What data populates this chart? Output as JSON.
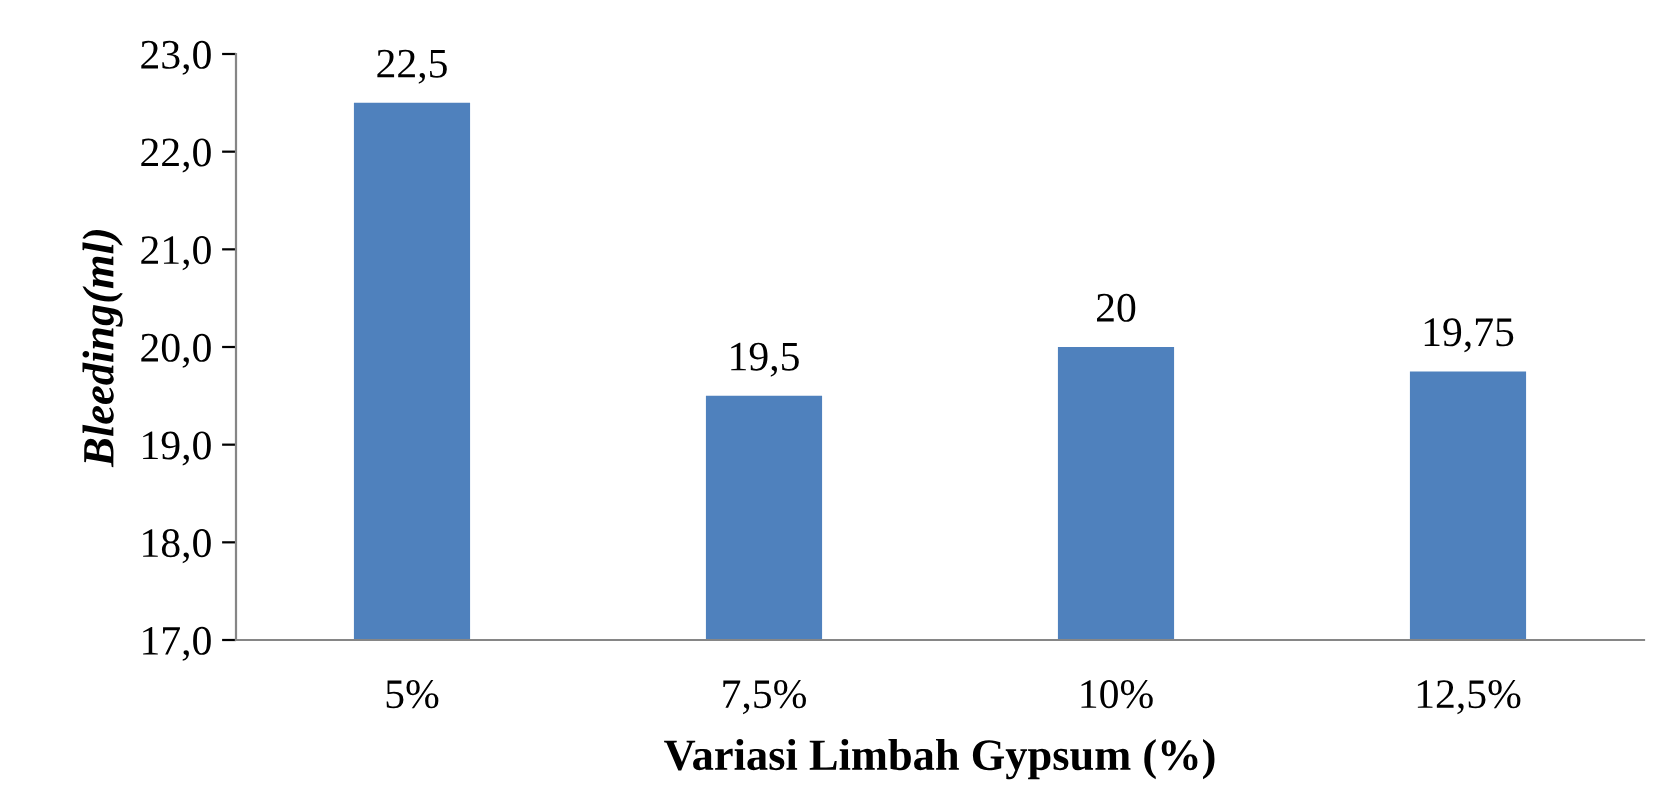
{
  "chart_data": {
    "type": "bar",
    "xlabel": "Variasi Limbah Gypsum (%)",
    "ylabel": "Bleeding(ml)",
    "categories": [
      "5%",
      "7,5%",
      "10%",
      "12,5%"
    ],
    "values": [
      22.5,
      19.5,
      20,
      19.75
    ],
    "value_labels": [
      "22,5",
      "19,5",
      "20",
      "19,75"
    ],
    "color": "#4f81bd",
    "ylim": [
      17,
      23
    ],
    "yticks": [
      {
        "value": 17,
        "label": "17,0"
      },
      {
        "value": 18,
        "label": "18,0"
      },
      {
        "value": 19,
        "label": "19,0"
      },
      {
        "value": 20,
        "label": "20,0"
      },
      {
        "value": 21,
        "label": "21,0"
      },
      {
        "value": 22,
        "label": "22,0"
      },
      {
        "value": 23,
        "label": "23,0"
      }
    ],
    "grid": false
  }
}
